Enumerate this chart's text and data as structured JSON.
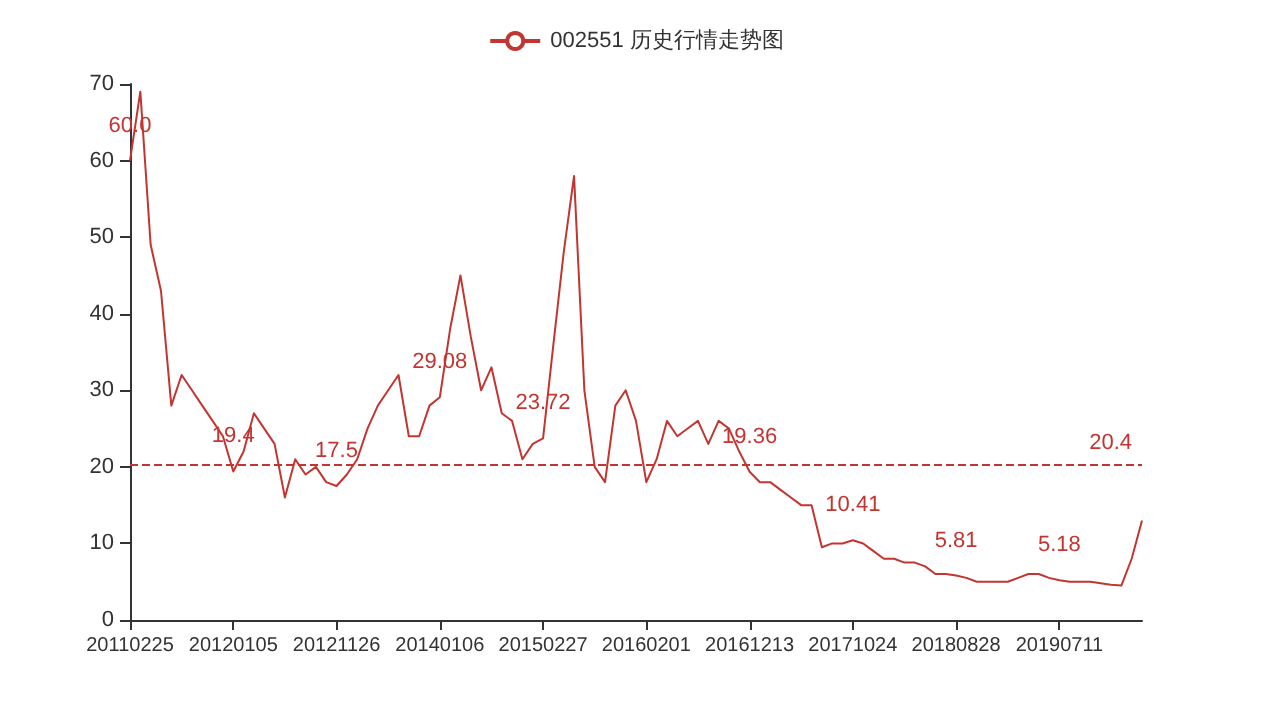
{
  "chart_data": {
    "type": "line",
    "categories": [
      "20110225",
      null,
      null,
      null,
      null,
      null,
      null,
      null,
      null,
      null,
      "20120105",
      null,
      null,
      null,
      null,
      null,
      null,
      null,
      null,
      null,
      "20121126",
      null,
      null,
      null,
      null,
      null,
      null,
      null,
      null,
      null,
      "20140106",
      null,
      null,
      null,
      null,
      null,
      null,
      null,
      null,
      null,
      "20150227",
      null,
      null,
      null,
      null,
      null,
      null,
      null,
      null,
      null,
      "20160201",
      null,
      null,
      null,
      null,
      null,
      null,
      null,
      null,
      null,
      "20161213",
      null,
      null,
      null,
      null,
      null,
      null,
      null,
      null,
      null,
      "20171024",
      null,
      null,
      null,
      null,
      null,
      null,
      null,
      null,
      null,
      "20180828",
      null,
      null,
      null,
      null,
      null,
      null,
      null,
      null,
      null,
      "20190711",
      null,
      null,
      null,
      null,
      null,
      null,
      null,
      null
    ],
    "series": [
      {
        "name": "002551 历史行情走势图",
        "color": "#c23531",
        "values": [
          60.0,
          69,
          49,
          43,
          28,
          32,
          30,
          28,
          26,
          24,
          19.4,
          22,
          27,
          25,
          23,
          16,
          21,
          19,
          20,
          18,
          17.5,
          19,
          21,
          25,
          28,
          30,
          32,
          24,
          24,
          28,
          29.08,
          38,
          45,
          37,
          30,
          33,
          27,
          26,
          21,
          23,
          23.72,
          36,
          48,
          58,
          30,
          20,
          18,
          28,
          30,
          26,
          18,
          21,
          26,
          24,
          25,
          26,
          23,
          26,
          25,
          22,
          19.36,
          18,
          18,
          17,
          16,
          15,
          15,
          9.5,
          10,
          10,
          10.41,
          10,
          9,
          8,
          8,
          7.5,
          7.5,
          7,
          6,
          6,
          5.81,
          5.5,
          5,
          5,
          5,
          5,
          5.5,
          6,
          6,
          5.5,
          5.18,
          5,
          5,
          5,
          4.8,
          4.6,
          4.5,
          8,
          13
        ],
        "value_labels": [
          "60.0",
          null,
          null,
          null,
          null,
          null,
          null,
          null,
          null,
          null,
          "19.4",
          null,
          null,
          null,
          null,
          null,
          null,
          null,
          null,
          null,
          "17.5",
          null,
          null,
          null,
          null,
          null,
          null,
          null,
          null,
          null,
          "29.08",
          null,
          null,
          null,
          null,
          null,
          null,
          null,
          null,
          null,
          "23.72",
          null,
          null,
          null,
          null,
          null,
          null,
          null,
          null,
          null,
          null,
          null,
          null,
          null,
          null,
          null,
          null,
          null,
          null,
          null,
          "19.36",
          null,
          null,
          null,
          null,
          null,
          null,
          null,
          null,
          null,
          "10.41",
          null,
          null,
          null,
          null,
          null,
          null,
          null,
          null,
          null,
          "5.81",
          null,
          null,
          null,
          null,
          null,
          null,
          null,
          null,
          null,
          "5.18",
          null,
          null,
          null,
          null,
          null,
          null,
          null,
          null
        ]
      }
    ],
    "ylim": [
      0,
      70
    ],
    "yticks": [
      0,
      10,
      20,
      30,
      40,
      50,
      60,
      70
    ],
    "ref_lines": [
      {
        "axis": "y",
        "value": 20.4,
        "label": "20.4",
        "color": "#c23531",
        "line_style": "dashed"
      }
    ],
    "grid": false,
    "legend": "top",
    "marker": "none",
    "line_style": "solid"
  }
}
